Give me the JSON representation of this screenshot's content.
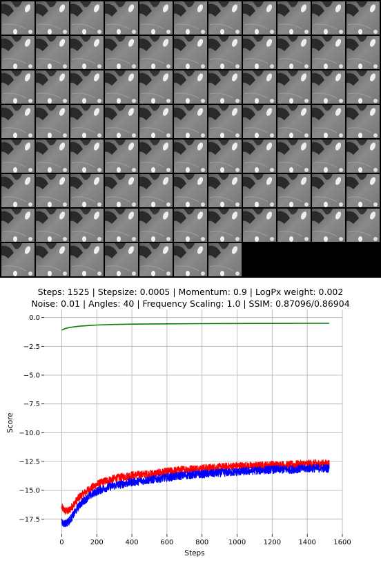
{
  "image_grid": {
    "tile_count": 84,
    "columns": 11
  },
  "chart_data": {
    "type": "line",
    "title_line1": "Steps: 1525 | Stepsize: 0.0005 | Momentum: 0.9 | LogPx weight: 0.002",
    "title_line2": "Noise: 0.01 | Angles: 40 | Frequency Scaling: 1.0 | SSIM: 0.87096/0.86904",
    "xlabel": "Steps",
    "ylabel": "Score",
    "xlim": [
      -100,
      1600
    ],
    "ylim": [
      -18.8,
      0.7
    ],
    "xticks": [
      0,
      200,
      400,
      600,
      800,
      1000,
      1200,
      1400,
      1600
    ],
    "yticks": [
      0.0,
      -2.5,
      -5.0,
      -7.5,
      -10.0,
      -12.5,
      -15.0,
      -17.5
    ],
    "xtick_labels": [
      "0",
      "200",
      "400",
      "600",
      "800",
      "1000",
      "1200",
      "1400",
      "1600"
    ],
    "ytick_labels": [
      "0.0",
      "−2.5",
      "−5.0",
      "−7.5",
      "−10.0",
      "−12.5",
      "−15.0",
      "−17.5"
    ],
    "grid": true,
    "series": [
      {
        "color": "#008000",
        "noise": 0,
        "x": [
          0,
          20,
          50,
          100,
          150,
          200,
          300,
          400,
          600,
          800,
          1000,
          1200,
          1400,
          1525
        ],
        "y": [
          -1.1,
          -0.95,
          -0.85,
          -0.75,
          -0.7,
          -0.65,
          -0.6,
          -0.57,
          -0.55,
          -0.53,
          -0.52,
          -0.51,
          -0.5,
          -0.5
        ]
      },
      {
        "color": "#ff0000",
        "noise": 0.35,
        "x": [
          0,
          20,
          40,
          60,
          80,
          100,
          150,
          200,
          250,
          300,
          400,
          500,
          600,
          700,
          800,
          900,
          1000,
          1100,
          1200,
          1300,
          1400,
          1525
        ],
        "y": [
          -16.5,
          -16.8,
          -16.8,
          -16.4,
          -16.0,
          -15.6,
          -15.0,
          -14.5,
          -14.2,
          -14.0,
          -13.7,
          -13.6,
          -13.4,
          -13.2,
          -13.1,
          -13.0,
          -12.9,
          -12.9,
          -12.8,
          -12.8,
          -12.7,
          -12.7
        ]
      },
      {
        "color": "#0000ff",
        "noise": 0.35,
        "x": [
          0,
          20,
          40,
          60,
          80,
          100,
          150,
          200,
          250,
          300,
          400,
          500,
          600,
          700,
          800,
          900,
          1000,
          1100,
          1200,
          1300,
          1400,
          1525
        ],
        "y": [
          -17.8,
          -17.9,
          -17.7,
          -17.3,
          -16.8,
          -16.3,
          -15.6,
          -15.1,
          -14.8,
          -14.6,
          -14.3,
          -14.1,
          -13.9,
          -13.7,
          -13.6,
          -13.5,
          -13.4,
          -13.3,
          -13.2,
          -13.2,
          -13.1,
          -13.1
        ]
      }
    ]
  }
}
